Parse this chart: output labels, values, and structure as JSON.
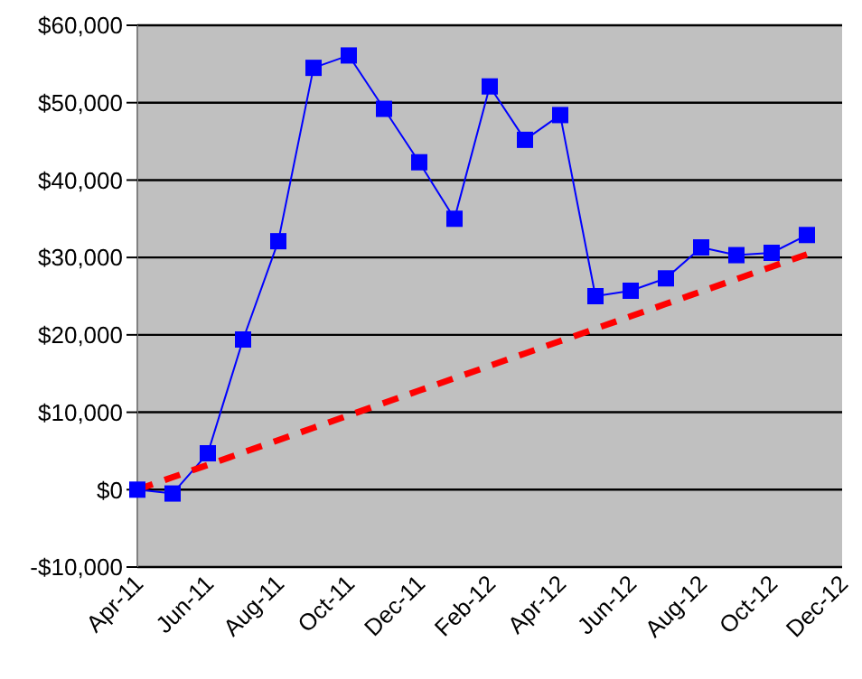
{
  "chart_data": {
    "type": "line",
    "categories": [
      "Apr-11",
      null,
      "Jun-11",
      null,
      "Aug-11",
      null,
      "Oct-11",
      null,
      "Dec-11",
      null,
      "Feb-12",
      null,
      "Apr-12",
      null,
      "Jun-12",
      null,
      "Aug-12",
      null,
      "Oct-12",
      null,
      "Dec-12"
    ],
    "series": [
      {
        "color": "#0000ff",
        "marker": "square",
        "line_style": "solid",
        "values": [
          0,
          -500,
          4700,
          19400,
          32100,
          54500,
          56100,
          49200,
          42300,
          35000,
          52100,
          45200,
          48400,
          25000,
          25700,
          27300,
          31300,
          30300,
          30600,
          32900,
          null
        ]
      },
      {
        "color": "#ff0000",
        "marker": "none",
        "line_style": "dashed",
        "values": [
          0,
          1600,
          3200,
          4800,
          6400,
          8000,
          9600,
          11200,
          12800,
          14400,
          16000,
          17600,
          19200,
          20800,
          22400,
          24000,
          25600,
          27200,
          28800,
          30400,
          null
        ]
      }
    ],
    "ylim": [
      -10000,
      60000
    ],
    "yticks": [
      {
        "value": -10000,
        "label": "-$10,000"
      },
      {
        "value": 0,
        "label": "$0"
      },
      {
        "value": 10000,
        "label": "$10,000"
      },
      {
        "value": 20000,
        "label": "$20,000"
      },
      {
        "value": 30000,
        "label": "$30,000"
      },
      {
        "value": 40000,
        "label": "$40,000"
      },
      {
        "value": 50000,
        "label": "$50,000"
      },
      {
        "value": 60000,
        "label": "$60,000"
      }
    ],
    "grid": "y",
    "legend": false
  }
}
